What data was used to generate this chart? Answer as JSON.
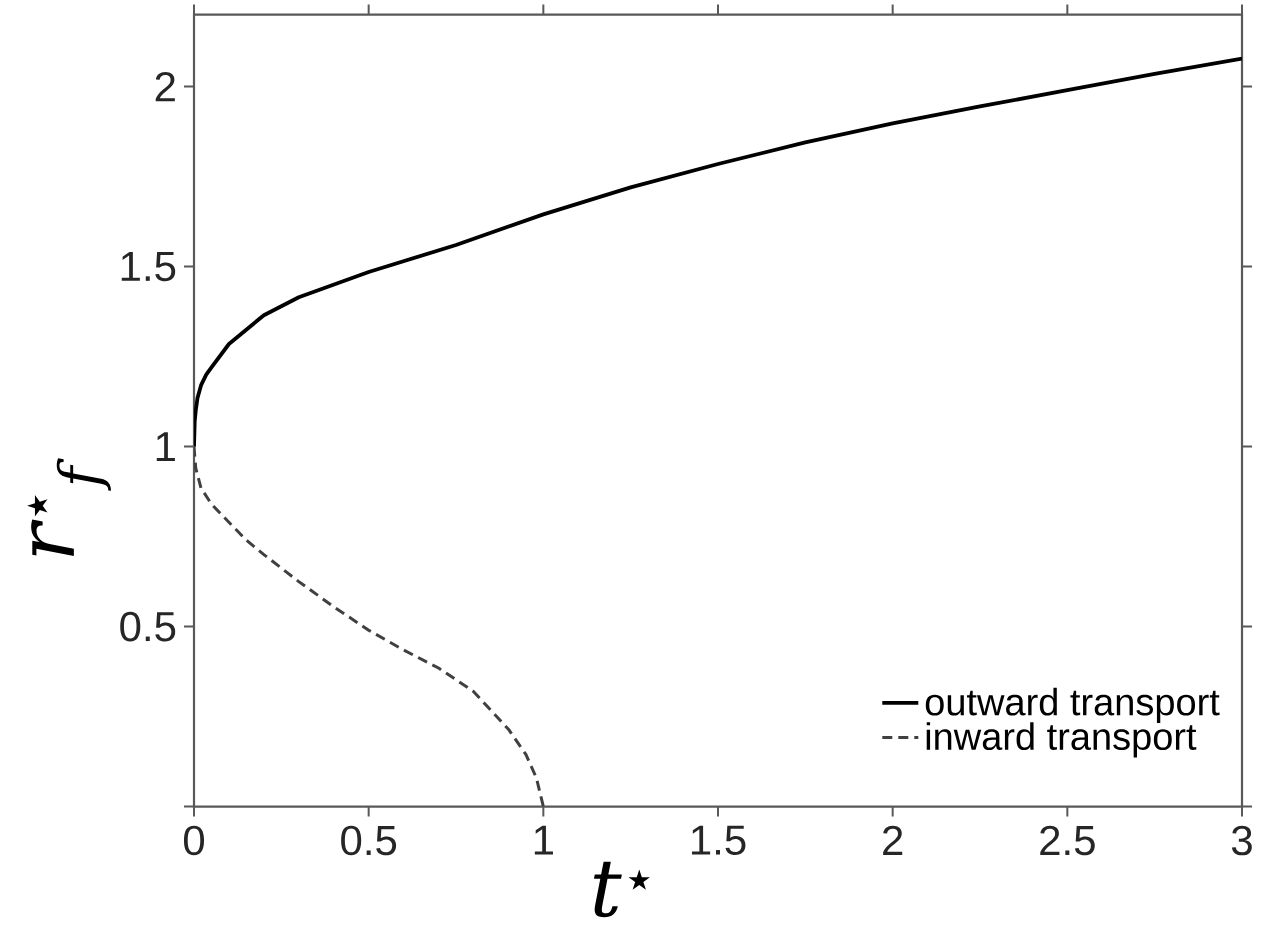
{
  "chart_data": {
    "type": "line",
    "xlabel": "t$^{⋆}$",
    "ylabel": "r$^{⋆}$$_{f}$",
    "xlim": [
      0,
      3
    ],
    "ylim": [
      0,
      2.2
    ],
    "xticks": [
      0,
      0.5,
      1,
      1.5,
      2,
      2.5,
      3
    ],
    "yticks": [
      {
        "value": 0,
        "label": null
      },
      0.5,
      1,
      1.5,
      2
    ],
    "legend": "bottom right",
    "marker": "none",
    "series": [
      {
        "name": "outward transport",
        "color": "#000000",
        "line_style": "solid",
        "x": [
          0,
          0.002,
          0.005,
          0.01,
          0.02,
          0.035,
          0.05,
          0.1,
          0.2,
          0.3,
          0.5,
          0.75,
          1,
          1.25,
          1.5,
          1.75,
          2,
          2.25,
          2.5,
          2.75,
          3
        ],
        "values": [
          1,
          1.07,
          1.1,
          1.135,
          1.17,
          1.2,
          1.22,
          1.285,
          1.365,
          1.415,
          1.485,
          1.56,
          1.645,
          1.72,
          1.785,
          1.845,
          1.898,
          1.945,
          1.99,
          2.035,
          2.078
        ]
      },
      {
        "name": "inward transport",
        "color": "#404040",
        "line_style": "dashed",
        "x": [
          0,
          0.005,
          0.02,
          0.05,
          0.1,
          0.15,
          0.2,
          0.3,
          0.4,
          0.5,
          0.6,
          0.7,
          0.8,
          0.9,
          0.95,
          0.98,
          1
        ],
        "values": [
          1,
          0.94,
          0.885,
          0.84,
          0.79,
          0.74,
          0.7,
          0.625,
          0.555,
          0.49,
          0.435,
          0.385,
          0.32,
          0.215,
          0.145,
          0.08,
          0
        ]
      }
    ]
  }
}
